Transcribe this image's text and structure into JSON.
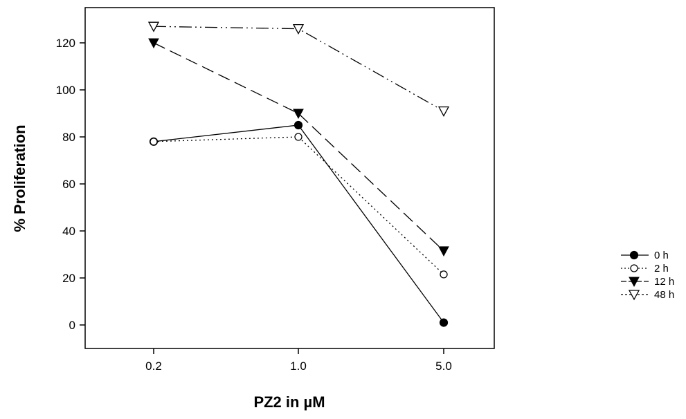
{
  "chart_data": {
    "type": "line",
    "xlabel": "PZ2 in µM",
    "ylabel": "% Proliferation",
    "categories": [
      "0.2",
      "1.0",
      "5.0"
    ],
    "yticks": [
      0,
      20,
      40,
      60,
      80,
      100,
      120
    ],
    "yticks_labels": [
      "0",
      "20",
      "40",
      "60",
      "80",
      "100",
      "120"
    ],
    "ylim": [
      -10,
      135
    ],
    "grid": false,
    "legend_position": "right",
    "series": [
      {
        "name": "0 h",
        "values": [
          78,
          85,
          1
        ],
        "marker": "circle-filled",
        "line": "solid"
      },
      {
        "name": "2 h",
        "values": [
          78,
          80,
          21.5
        ],
        "marker": "circle-open",
        "line": "dotted"
      },
      {
        "name": "12 h",
        "values": [
          120,
          90,
          31.5
        ],
        "marker": "triangle-filled",
        "line": "dashed"
      },
      {
        "name": "48 h",
        "values": [
          127,
          126,
          91
        ],
        "marker": "triangle-open",
        "line": "dashdotdot"
      }
    ]
  }
}
